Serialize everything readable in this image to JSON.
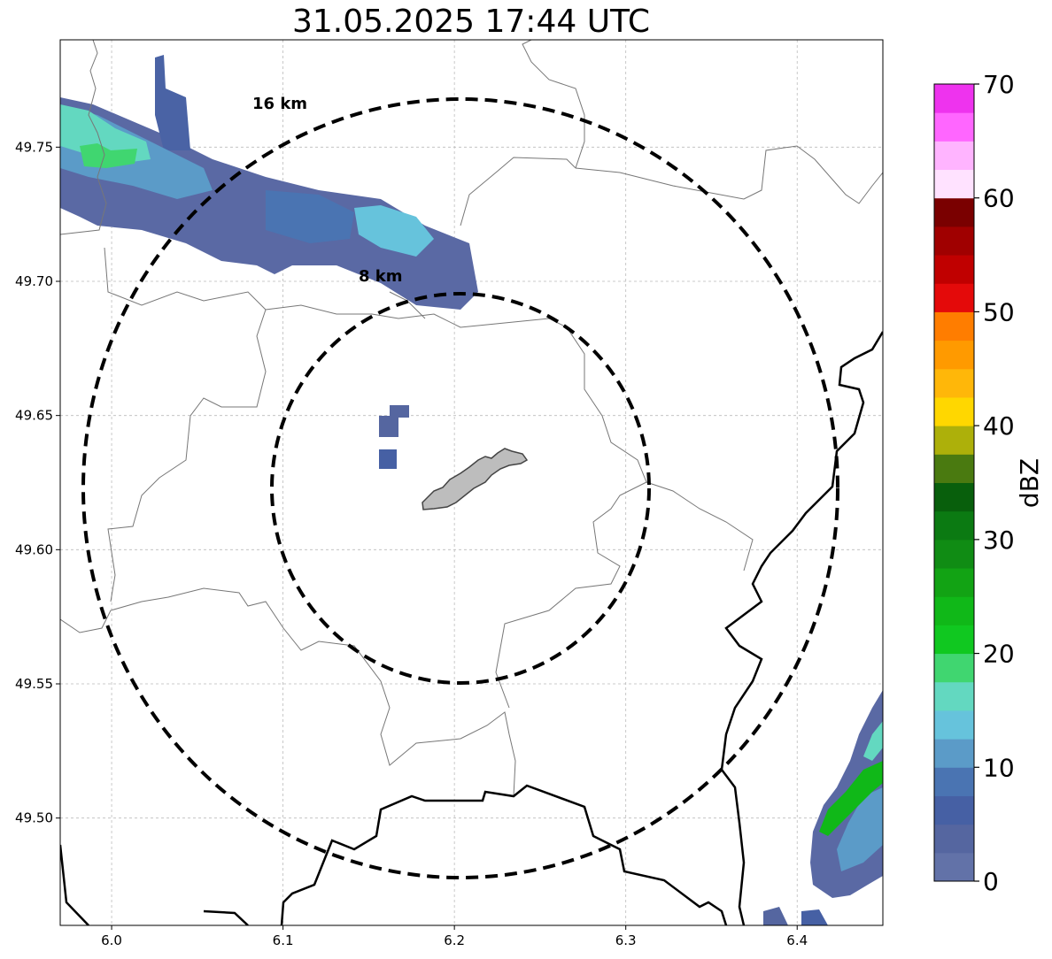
{
  "title": "31.05.2025 17:44 UTC",
  "axes": {
    "x_ticks": [
      "6.0",
      "6.1",
      "6.2",
      "6.3",
      "6.4"
    ],
    "y_ticks": [
      "49.50",
      "49.55",
      "49.60",
      "49.65",
      "49.70",
      "49.75"
    ],
    "x_range": [
      5.97,
      6.45
    ],
    "y_range": [
      49.46,
      49.79
    ],
    "grid": true
  },
  "rings": [
    {
      "label": "8 km",
      "radius_km": 8
    },
    {
      "label": "16 km",
      "radius_km": 16
    }
  ],
  "colorbar": {
    "label": "dBZ",
    "tick_labels": [
      "0",
      "10",
      "20",
      "30",
      "40",
      "50",
      "60",
      "70"
    ],
    "range": [
      0,
      70
    ],
    "step_dbz": 2.5,
    "colors": [
      "#6272a8",
      "#5566a0",
      "#4660a4",
      "#4a74b2",
      "#5b9bc8",
      "#66c3dc",
      "#63d8c0",
      "#40d670",
      "#10c820",
      "#10b818",
      "#12a314",
      "#108c14",
      "#0b7a12",
      "#085f0c",
      "#4a7a10",
      "#adb00a",
      "#ffd700",
      "#ffb709",
      "#ff9a00",
      "#ff7d00",
      "#e40a0a",
      "#c00000",
      "#a00000",
      "#7a0000",
      "#ffe2ff",
      "#ffb4ff",
      "#ff66ff",
      "#ee33ee"
    ]
  },
  "colors": {
    "ring": "#000000",
    "grid": "#bbbbbb",
    "boundary": "#777777",
    "border": "#000000",
    "site": "#bdbdbd"
  }
}
